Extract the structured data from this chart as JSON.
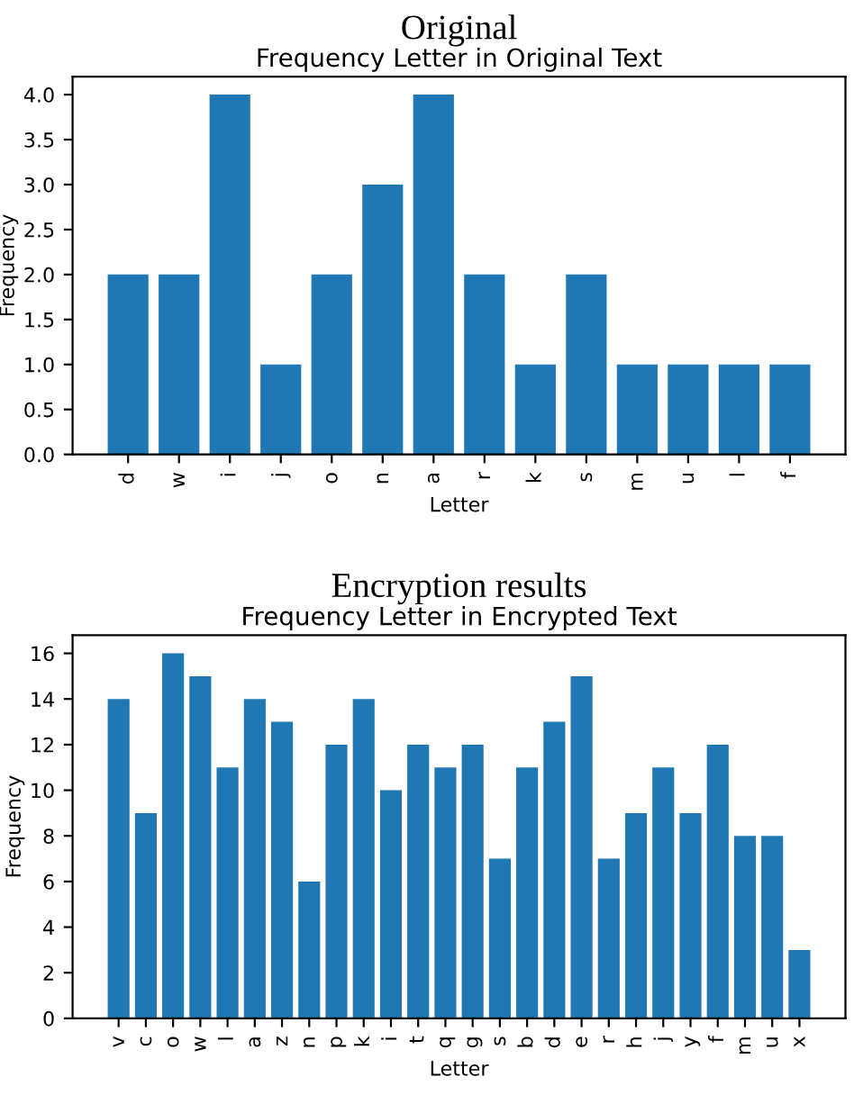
{
  "chart_data": [
    {
      "type": "bar",
      "title": "Original",
      "subtitle": "Frequency Letter in Original Text",
      "xlabel": "Letter",
      "ylabel": "Frequency",
      "categories": [
        "d",
        "w",
        "i",
        "j",
        "o",
        "n",
        "a",
        "r",
        "k",
        "s",
        "m",
        "u",
        "l",
        "f"
      ],
      "values": [
        2,
        2,
        4,
        1,
        2,
        3,
        4,
        2,
        1,
        2,
        1,
        1,
        1,
        1
      ],
      "color": "#1f77b4",
      "ylim": [
        0,
        4.2
      ],
      "yticks": [
        {
          "value": 0,
          "label": "0.0"
        },
        {
          "value": 0.5,
          "label": "0.5"
        },
        {
          "value": 1,
          "label": "1.0"
        },
        {
          "value": 1.5,
          "label": "1.5"
        },
        {
          "value": 2,
          "label": "2.0"
        },
        {
          "value": 2.5,
          "label": "2.5"
        },
        {
          "value": 3,
          "label": "3.0"
        },
        {
          "value": 3.5,
          "label": "3.5"
        },
        {
          "value": 4,
          "label": "4.0"
        }
      ],
      "grid": false,
      "legend": false
    },
    {
      "type": "bar",
      "title": "Encryption results",
      "subtitle": "Frequency Letter in Encrypted Text",
      "xlabel": "Letter",
      "ylabel": "Frequency",
      "categories": [
        "v",
        "c",
        "o",
        "w",
        "l",
        "a",
        "z",
        "n",
        "p",
        "k",
        "i",
        "t",
        "q",
        "g",
        "s",
        "b",
        "d",
        "e",
        "r",
        "h",
        "j",
        "y",
        "f",
        "m",
        "u",
        "x"
      ],
      "values": [
        14,
        9,
        16,
        15,
        11,
        14,
        13,
        6,
        12,
        14,
        10,
        12,
        11,
        12,
        7,
        11,
        13,
        15,
        7,
        9,
        11,
        9,
        12,
        8,
        8,
        3
      ],
      "color": "#1f77b4",
      "ylim": [
        0,
        16.8
      ],
      "yticks": [
        0,
        2,
        4,
        6,
        8,
        10,
        12,
        14,
        16
      ],
      "grid": false,
      "legend": false
    }
  ]
}
